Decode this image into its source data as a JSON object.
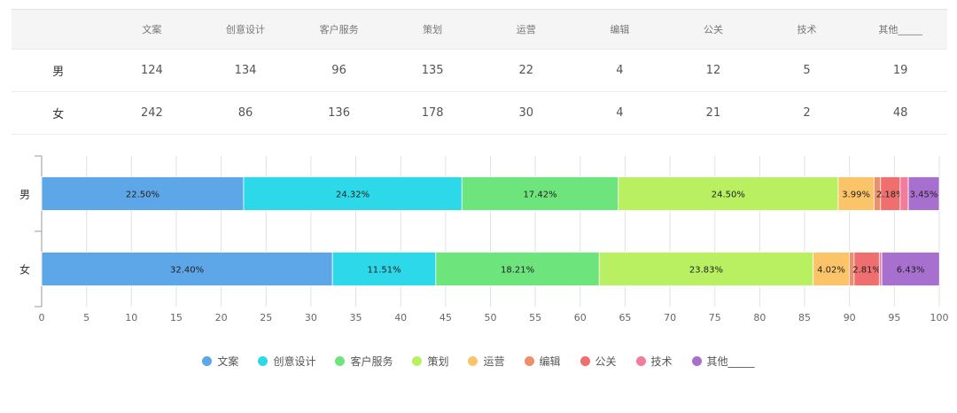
{
  "table": {
    "headers": [
      "",
      "文案",
      "创意设计",
      "客户服务",
      "策划",
      "运营",
      "编辑",
      "公关",
      "技术",
      "其他_____"
    ],
    "rows": [
      {
        "label": "男",
        "values": [
          "124",
          "134",
          "96",
          "135",
          "22",
          "4",
          "12",
          "5",
          "19"
        ]
      },
      {
        "label": "女",
        "values": [
          "242",
          "86",
          "136",
          "178",
          "30",
          "4",
          "21",
          "2",
          "48"
        ]
      }
    ]
  },
  "chart_data": {
    "type": "bar",
    "orientation": "horizontal",
    "stacked": true,
    "categories": [
      "男",
      "女"
    ],
    "xlim": [
      0,
      100
    ],
    "xticks": [
      "0",
      "5",
      "10",
      "15",
      "20",
      "25",
      "30",
      "35",
      "40",
      "45",
      "50",
      "55",
      "60",
      "65",
      "70",
      "75",
      "80",
      "85",
      "90",
      "95",
      "100"
    ],
    "grid": true,
    "legend_position": "bottom",
    "series": [
      {
        "name": "文案",
        "color": "#5da7e8",
        "values": [
          22.5,
          32.4
        ],
        "labels": [
          "22.50%",
          "32.40%"
        ]
      },
      {
        "name": "创意设计",
        "color": "#2dd9e8",
        "values": [
          24.32,
          11.51
        ],
        "labels": [
          "24.32%",
          "11.51%"
        ]
      },
      {
        "name": "客户服务",
        "color": "#6ee47c",
        "values": [
          17.42,
          18.21
        ],
        "labels": [
          "17.42%",
          "18.21%"
        ]
      },
      {
        "name": "策划",
        "color": "#b8f061",
        "values": [
          24.5,
          23.83
        ],
        "labels": [
          "24.50%",
          "23.83%"
        ]
      },
      {
        "name": "运营",
        "color": "#fcc468",
        "values": [
          3.99,
          4.02
        ],
        "labels": [
          "3.99%",
          "4.02%"
        ]
      },
      {
        "name": "编辑",
        "color": "#ee8f6c",
        "values": [
          0.73,
          0.54
        ],
        "labels": [
          "",
          ""
        ]
      },
      {
        "name": "公关",
        "color": "#ef6e6e",
        "values": [
          2.18,
          2.81
        ],
        "labels": [
          "2.18%",
          "2.81%"
        ]
      },
      {
        "name": "技术",
        "color": "#f27c9c",
        "values": [
          0.91,
          0.27
        ],
        "labels": [
          "",
          ""
        ]
      },
      {
        "name": "其他_____",
        "color": "#a770cf",
        "values": [
          3.45,
          6.43
        ],
        "labels": [
          "3.45%",
          "6.43%"
        ]
      }
    ]
  }
}
